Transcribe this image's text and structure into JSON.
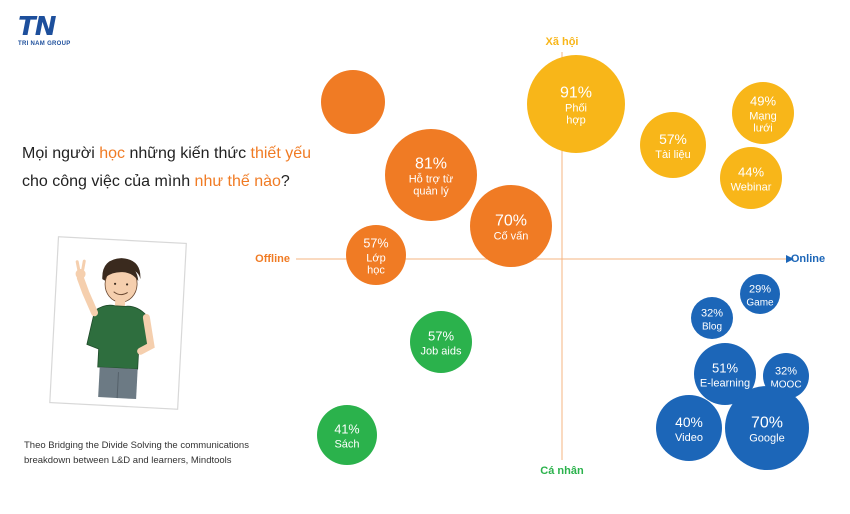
{
  "logo": {
    "mark": "TN",
    "subtitle": "TRI NAM GROUP"
  },
  "question": [
    {
      "text": "Mọi người ",
      "hl": false
    },
    {
      "text": "học",
      "hl": true
    },
    {
      "text": " những kiến thức ",
      "hl": false
    },
    {
      "text": "thiết yếu",
      "hl": true
    },
    {
      "text": " cho công việc của mình ",
      "hl": false
    },
    {
      "text": "như thế nào",
      "hl": true
    },
    {
      "text": "?",
      "hl": false
    }
  ],
  "source": "Theo Bridging the Divide Solving the communications breakdown between L&D and learners, Mindtools",
  "colors": {
    "offline": "#f07b24",
    "social": "#f8b619",
    "online": "#1c66b8",
    "personal": "#2bb24c",
    "question_highlight": "#f07b24"
  },
  "chart_data": {
    "type": "bubble",
    "title": "",
    "axes": {
      "top": "Xã hội",
      "bottom": "Cá nhân",
      "left": "Offline",
      "right": "Online"
    },
    "bubbles": [
      {
        "value": "",
        "label": "",
        "group": "offline"
      },
      {
        "value": "91%",
        "label": "Phối hợp",
        "group": "social"
      },
      {
        "value": "81%",
        "label": "Hỗ trợ từ quản lý",
        "group": "offline"
      },
      {
        "value": "57%",
        "label": "Tài liệu",
        "group": "social"
      },
      {
        "value": "49%",
        "label": "Mạng lưới",
        "group": "social"
      },
      {
        "value": "44%",
        "label": "Webinar",
        "group": "social"
      },
      {
        "value": "70%",
        "label": "Cố vấn",
        "group": "offline"
      },
      {
        "value": "57%",
        "label": "Lớp học",
        "group": "offline"
      },
      {
        "value": "57%",
        "label": "Job aids",
        "group": "personal"
      },
      {
        "value": "41%",
        "label": "Sách",
        "group": "personal"
      },
      {
        "value": "29%",
        "label": "Game",
        "group": "online"
      },
      {
        "value": "32%",
        "label": "Blog",
        "group": "online"
      },
      {
        "value": "51%",
        "label": "E-learning",
        "group": "online"
      },
      {
        "value": "32%",
        "label": "MOOC",
        "group": "online"
      },
      {
        "value": "40%",
        "label": "Video",
        "group": "online"
      },
      {
        "value": "70%",
        "label": "Google",
        "group": "online"
      }
    ]
  }
}
